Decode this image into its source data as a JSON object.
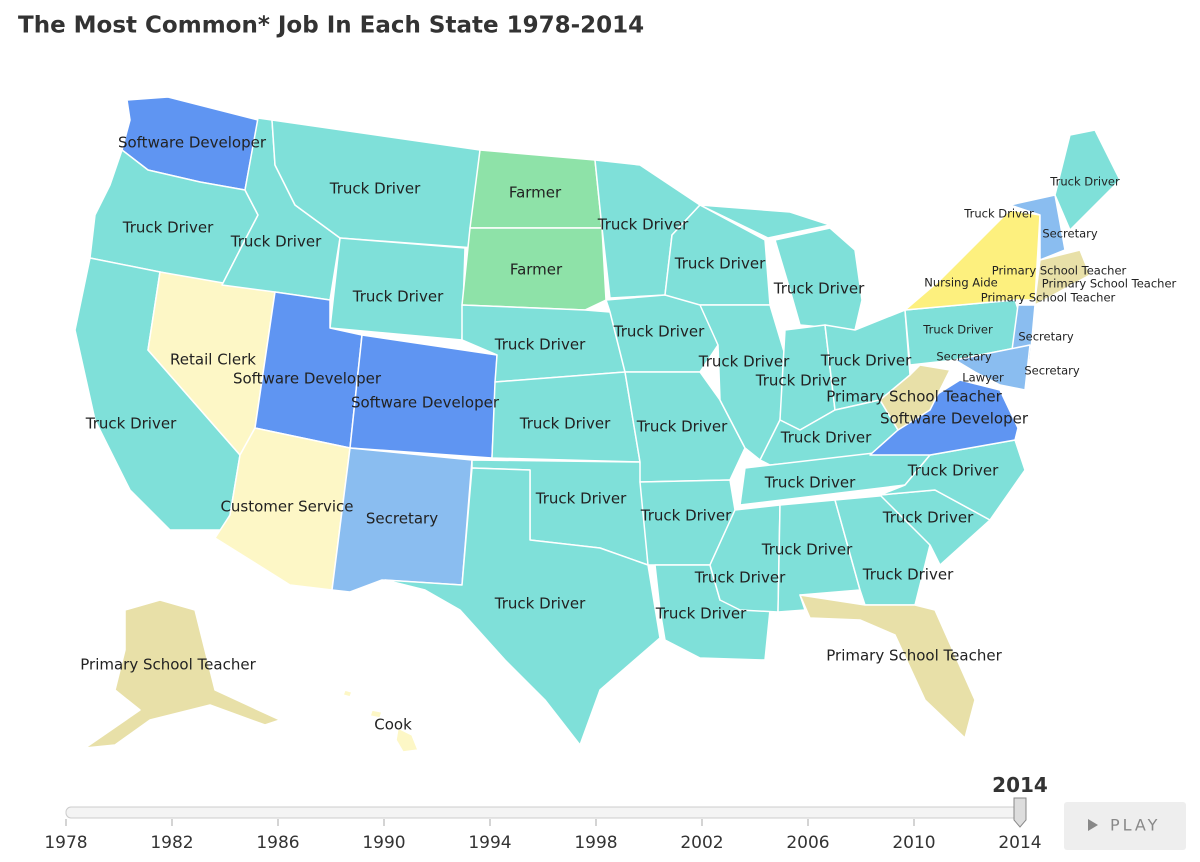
{
  "header": {
    "title": "The Most Common* Job In Each State 1978-2014"
  },
  "states": [
    {
      "label": "Software Developer",
      "color": "#5f95f2"
    },
    {
      "label": "Truck Driver",
      "color": "#7fe0d9"
    },
    {
      "label": "Truck Driver",
      "color": "#7fe0d9"
    },
    {
      "label": "Truck Driver",
      "color": "#7fe0d9"
    },
    {
      "label": "Farmer",
      "color": "#8ee2a8"
    },
    {
      "label": "Farmer",
      "color": "#8ee2a8"
    },
    {
      "label": "Truck Driver",
      "color": "#7fe0d9"
    },
    {
      "label": "Truck Driver",
      "color": "#7fe0d9"
    },
    {
      "label": "Truck Driver",
      "color": "#7fe0d9"
    },
    {
      "label": "Truck Driver",
      "color": "#7fe0d9"
    },
    {
      "label": "Truck Driver",
      "color": "#7fe0d9"
    },
    {
      "label": "Truck Driver",
      "color": "#7fe0d9"
    },
    {
      "label": "Secretary",
      "color": "#8abdf0"
    },
    {
      "label": "Primary School Teacher",
      "color": "#e8e0a8"
    },
    {
      "label": "Nursing Aide",
      "color": "#fdf07e"
    },
    {
      "label": "Primary School Teacher",
      "color": "#e8e0a8"
    },
    {
      "label": "Primary School Teacher",
      "color": "#e8e0a8"
    },
    {
      "label": "Retail Clerk",
      "color": "#fdf7c6"
    },
    {
      "label": "Software Developer",
      "color": "#5f95f2"
    },
    {
      "label": "Software Developer",
      "color": "#5f95f2"
    },
    {
      "label": "Truck Driver",
      "color": "#7fe0d9"
    },
    {
      "label": "Truck Driver",
      "color": "#7fe0d9"
    },
    {
      "label": "Truck Driver",
      "color": "#7fe0d9"
    },
    {
      "label": "Truck Driver",
      "color": "#7fe0d9"
    },
    {
      "label": "Truck Driver",
      "color": "#7fe0d9"
    },
    {
      "label": "Truck Driver",
      "color": "#7fe0d9"
    },
    {
      "label": "Secretary",
      "color": "#8abdf0"
    },
    {
      "label": "Secretary",
      "color": "#8abdf0"
    },
    {
      "label": "Secretary",
      "color": "#8abdf0"
    },
    {
      "label": "Lawyer",
      "color": "#8abdf0"
    },
    {
      "label": "Primary School Teacher",
      "color": "#e8e0a8"
    },
    {
      "label": "Software Developer",
      "color": "#5f95f2"
    },
    {
      "label": "Truck Driver",
      "color": "#7fe0d9"
    },
    {
      "label": "Truck Driver",
      "color": "#7fe0d9"
    },
    {
      "label": "Truck Driver",
      "color": "#7fe0d9"
    },
    {
      "label": "Truck Driver",
      "color": "#7fe0d9"
    },
    {
      "label": "Customer Service",
      "color": "#fdf7c6"
    },
    {
      "label": "Secretary",
      "color": "#8abdf0"
    },
    {
      "label": "Truck Driver",
      "color": "#7fe0d9"
    },
    {
      "label": "Truck Driver",
      "color": "#7fe0d9"
    },
    {
      "label": "Truck Driver",
      "color": "#7fe0d9"
    },
    {
      "label": "Truck Driver",
      "color": "#7fe0d9"
    },
    {
      "label": "Truck Driver",
      "color": "#7fe0d9"
    },
    {
      "label": "Truck Driver",
      "color": "#7fe0d9"
    },
    {
      "label": "Truck Driver",
      "color": "#7fe0d9"
    },
    {
      "label": "Truck Driver",
      "color": "#7fe0d9"
    },
    {
      "label": "Truck Driver",
      "color": "#7fe0d9"
    },
    {
      "label": "Truck Driver",
      "color": "#7fe0d9"
    },
    {
      "label": "Primary School Teacher",
      "color": "#e8e0a8"
    },
    {
      "label": "Primary School Teacher",
      "color": "#e8e0a8"
    },
    {
      "label": "Cook",
      "color": "#fdf7c6"
    }
  ],
  "timeline": {
    "min": 1978,
    "max": 2014,
    "value": 2014,
    "ticks": [
      1978,
      1982,
      1986,
      1990,
      1994,
      1998,
      2002,
      2006,
      2010,
      2014
    ]
  },
  "play_button": {
    "label": "PLAY"
  }
}
